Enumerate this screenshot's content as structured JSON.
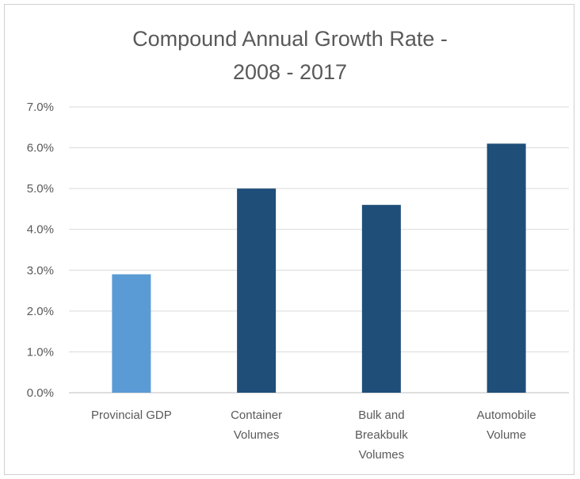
{
  "chart_data": {
    "type": "bar",
    "title_lines": [
      "Compound Annual Growth Rate -",
      "2008 - 2017"
    ],
    "categories": [
      [
        "Provincial GDP"
      ],
      [
        "Container",
        "Volumes"
      ],
      [
        "Bulk and",
        "Breakbulk",
        "Volumes"
      ],
      [
        "Automobile",
        "Volume"
      ]
    ],
    "values": [
      2.9,
      5.0,
      4.6,
      6.1
    ],
    "value_unit": "%",
    "ylim": [
      0,
      7
    ],
    "yticks": [
      "0.0%",
      "1.0%",
      "2.0%",
      "3.0%",
      "4.0%",
      "5.0%",
      "6.0%",
      "7.0%"
    ],
    "xlabel": "",
    "ylabel": "",
    "grid": true,
    "legend": "none",
    "colors": {
      "bars": [
        "#5b9bd5",
        "#1f4e79",
        "#1f4e79",
        "#1f4e79"
      ],
      "grid": "#d9d9d9",
      "axis": "#bfbfbf",
      "text": "#595959"
    }
  }
}
